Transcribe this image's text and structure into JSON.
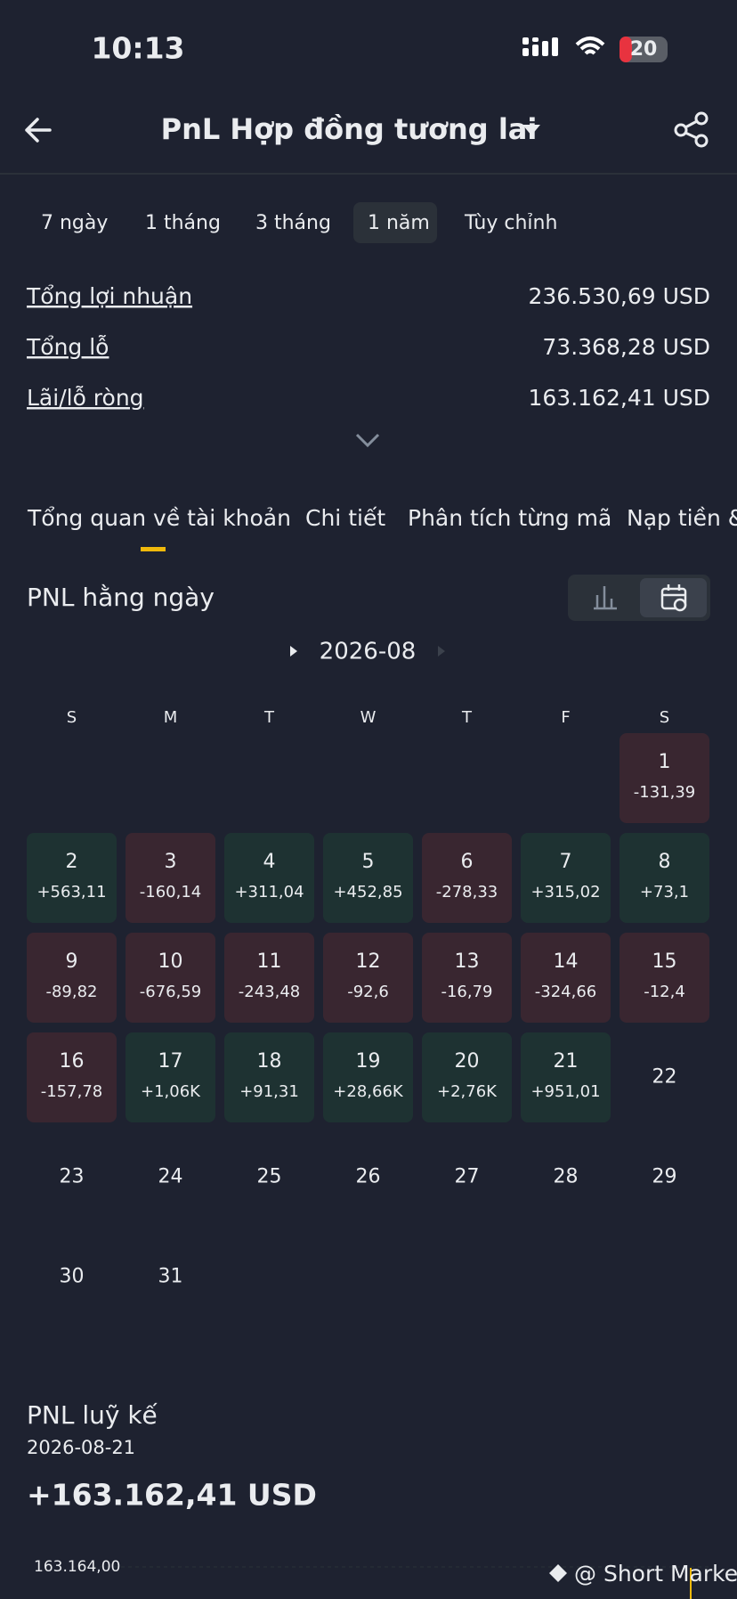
{
  "status_bar": {
    "time": "10:13",
    "battery": "20"
  },
  "header": {
    "title": "PnL Hợp đồng tương lai"
  },
  "periods": {
    "options": [
      "7 ngày",
      "1 tháng",
      "3 tháng",
      "1 năm",
      "Tùy chỉnh"
    ],
    "selected": 3
  },
  "summary": [
    {
      "label": "Tổng lợi nhuận",
      "value": "236.530,69 USD"
    },
    {
      "label": "Tổng lỗ",
      "value": "73.368,28 USD"
    },
    {
      "label": "Lãi/lỗ ròng",
      "value": "163.162,41 USD"
    }
  ],
  "tabs": {
    "options": [
      "Tổng quan về tài khoản",
      "Chi tiết",
      "Phân tích từng mã",
      "Nạp tiền &"
    ],
    "selected": 0
  },
  "daily_pnl": {
    "title": "PNL hằng ngày",
    "month": "2026-08",
    "weekdays": [
      "S",
      "M",
      "T",
      "W",
      "T",
      "F",
      "S"
    ],
    "days": [
      {
        "day": 1,
        "pnl": "-131,39"
      },
      {
        "day": 2,
        "pnl": "+563,11"
      },
      {
        "day": 3,
        "pnl": "-160,14"
      },
      {
        "day": 4,
        "pnl": "+311,04"
      },
      {
        "day": 5,
        "pnl": "+452,85"
      },
      {
        "day": 6,
        "pnl": "-278,33"
      },
      {
        "day": 7,
        "pnl": "+315,02"
      },
      {
        "day": 8,
        "pnl": "+73,1"
      },
      {
        "day": 9,
        "pnl": "-89,82"
      },
      {
        "day": 10,
        "pnl": "-676,59"
      },
      {
        "day": 11,
        "pnl": "-243,48"
      },
      {
        "day": 12,
        "pnl": "-92,6"
      },
      {
        "day": 13,
        "pnl": "-16,79"
      },
      {
        "day": 14,
        "pnl": "-324,66"
      },
      {
        "day": 15,
        "pnl": "-12,4"
      },
      {
        "day": 16,
        "pnl": "-157,78"
      },
      {
        "day": 17,
        "pnl": "+1,06K"
      },
      {
        "day": 18,
        "pnl": "+91,31"
      },
      {
        "day": 19,
        "pnl": "+28,66K"
      },
      {
        "day": 20,
        "pnl": "+2,76K"
      },
      {
        "day": 21,
        "pnl": "+951,01"
      },
      {
        "day": 22
      },
      {
        "day": 23
      },
      {
        "day": 24
      },
      {
        "day": 25
      },
      {
        "day": 26
      },
      {
        "day": 27
      },
      {
        "day": 28
      },
      {
        "day": 29
      },
      {
        "day": 30
      },
      {
        "day": 31
      }
    ]
  },
  "cumulative": {
    "title": "PNL luỹ kế",
    "date": "2026-08-21",
    "total": "+163.162,41 USD",
    "axis_label": "163.164,00"
  },
  "watermark": "@ Short Market"
}
